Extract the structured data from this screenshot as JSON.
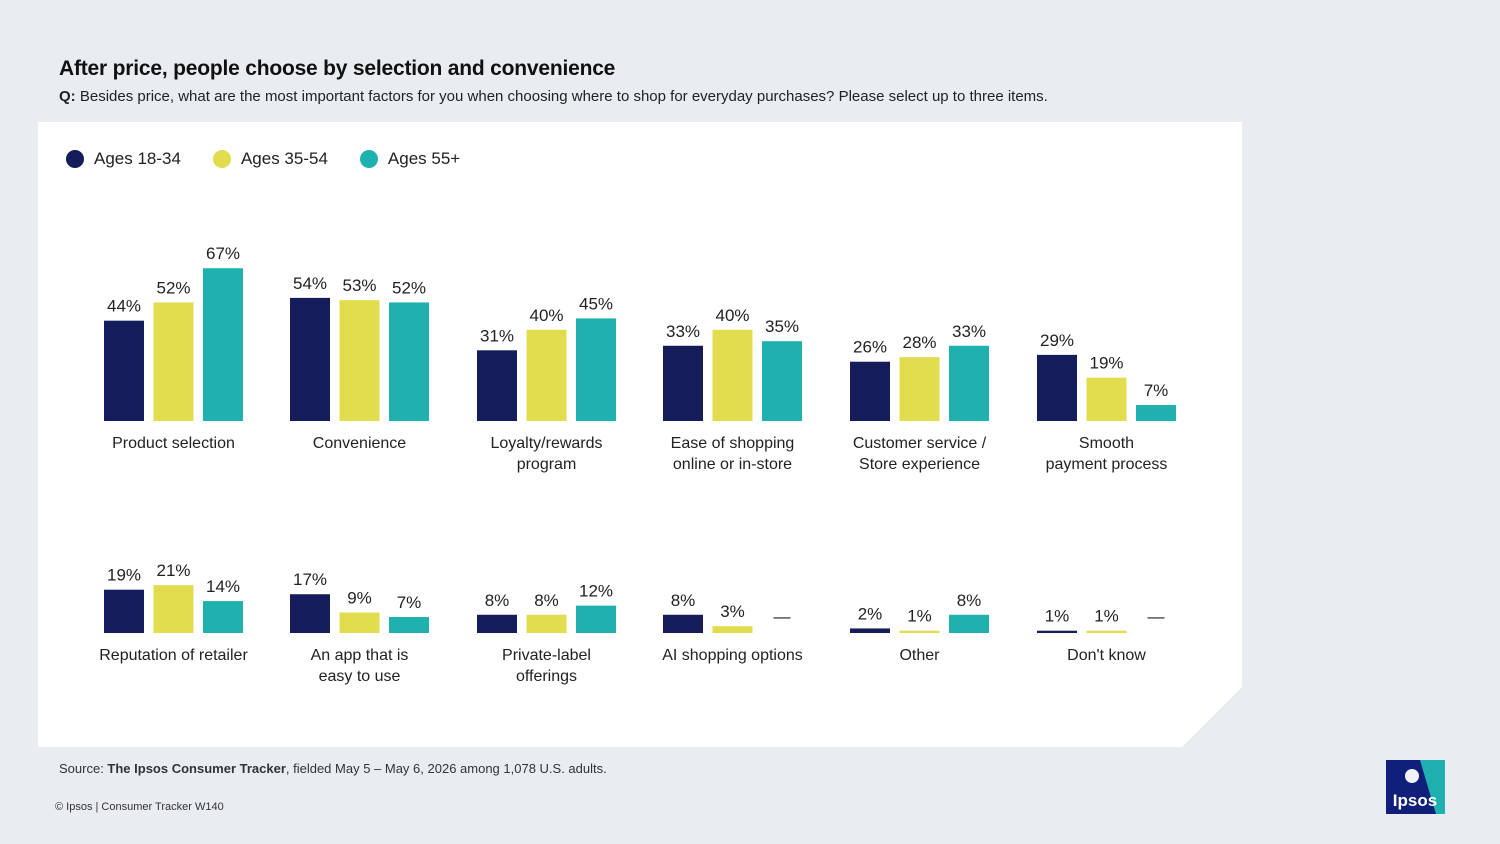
{
  "title": "After price, people choose by selection and convenience",
  "question": {
    "prefix": "Q:",
    "text": "Besides price, what are the most important factors for you when choosing where to shop for everyday purchases? Please select up to three items."
  },
  "legend": [
    {
      "label": "Ages 18-34",
      "color": "#141c5a"
    },
    {
      "label": "Ages 35-54",
      "color": "#e2dc4f"
    },
    {
      "label": "Ages 55+",
      "color": "#1fb0b0"
    }
  ],
  "source": {
    "prefix": "Source: ",
    "bold": "The Ipsos Consumer Tracker",
    "rest": ", fielded May 5 – May 6, 2026 among 1,078 U.S. adults."
  },
  "footer": "© Ipsos | Consumer Tracker W140",
  "logo_text": "Ipsos",
  "chart_data": {
    "type": "bar",
    "title": "After price, people choose by selection and convenience",
    "series": [
      {
        "name": "Ages 18-34",
        "color": "#141c5a",
        "values": [
          44,
          54,
          31,
          33,
          26,
          29,
          19,
          17,
          8,
          8,
          2,
          1
        ]
      },
      {
        "name": "Ages 35-54",
        "color": "#e2dc4f",
        "values": [
          52,
          53,
          40,
          40,
          28,
          19,
          21,
          9,
          8,
          3,
          1,
          1
        ]
      },
      {
        "name": "Ages 55+",
        "color": "#1fb0b0",
        "values": [
          67,
          52,
          45,
          35,
          33,
          7,
          14,
          7,
          12,
          null,
          8,
          null
        ]
      }
    ],
    "categories": [
      [
        "Product selection"
      ],
      [
        "Convenience"
      ],
      [
        "Loyalty/rewards",
        "program"
      ],
      [
        "Ease of shopping",
        "online or in-store"
      ],
      [
        "Customer service /",
        "Store experience"
      ],
      [
        "Smooth",
        "payment process"
      ],
      [
        "Reputation of retailer"
      ],
      [
        "An app that is",
        "easy to use"
      ],
      [
        "Private-label",
        "offerings"
      ],
      [
        "AI shopping options"
      ],
      [
        "Other"
      ],
      [
        "Don't know"
      ]
    ],
    "unit": "%",
    "missing_label": "—",
    "ylim": [
      0,
      100
    ],
    "grid": false,
    "legend_position": "top-left"
  }
}
